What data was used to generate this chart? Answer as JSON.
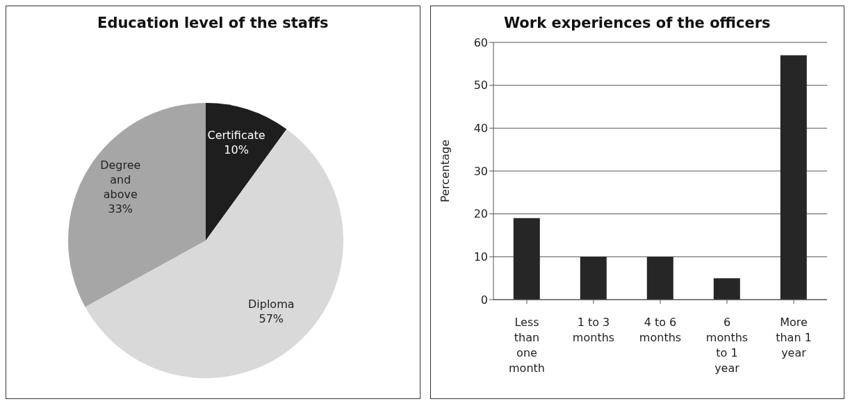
{
  "chart_data": [
    {
      "type": "pie",
      "title": "Education level of the staffs",
      "categories": [
        "Certificate",
        "Diploma",
        "Degree and above"
      ],
      "values": [
        10,
        57,
        33
      ],
      "colors": [
        "#1e1e1e",
        "#d9d9d9",
        "#a6a6a6"
      ],
      "value_labels": [
        "10%",
        "57%",
        "33%"
      ],
      "legend": false
    },
    {
      "type": "bar",
      "title": "Work experiences of the officers",
      "ylabel": "Percentage",
      "categories": [
        "Less than one month",
        "1 to 3 months",
        "4 to 6 months",
        "6 months to 1 year",
        "More than 1 year"
      ],
      "values": [
        19,
        10,
        10,
        5,
        57
      ],
      "color": "#262626",
      "ylim": [
        0,
        60
      ],
      "yticks": [
        0,
        10,
        20,
        30,
        40,
        50,
        60
      ],
      "grid": "y",
      "legend": false
    }
  ]
}
